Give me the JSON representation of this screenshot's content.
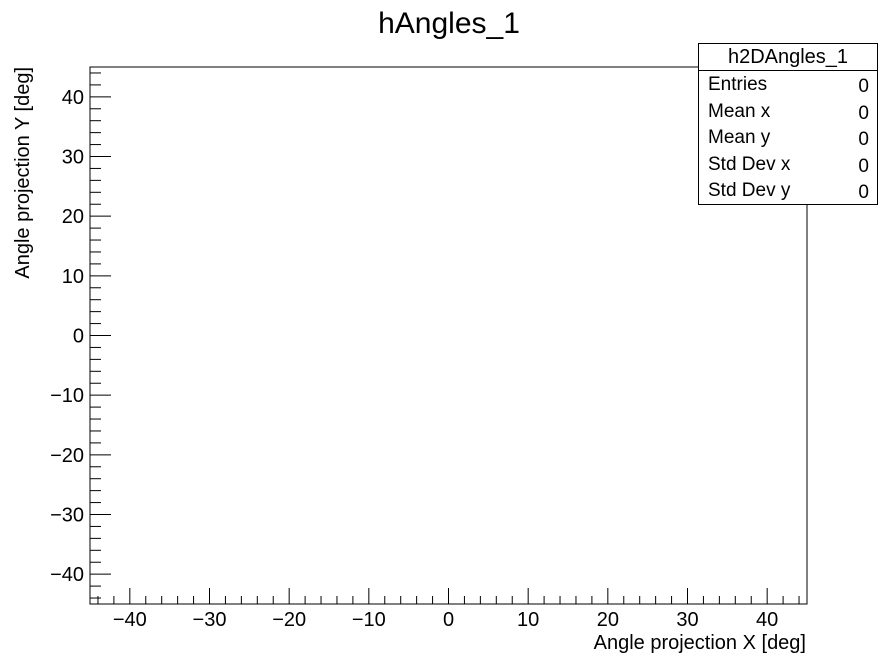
{
  "chart_data": {
    "type": "heatmap",
    "title": "hAngles_1",
    "xlabel": "Angle projection X [deg]",
    "ylabel": "Angle projection Y [deg]",
    "xlim": [
      -45,
      45
    ],
    "ylim": [
      -45,
      45
    ],
    "x_ticks": [
      -40,
      -30,
      -20,
      -10,
      0,
      10,
      20,
      30,
      40
    ],
    "y_ticks": [
      -40,
      -30,
      -20,
      -10,
      0,
      10,
      20,
      30,
      40
    ],
    "x_tick_labels": [
      "−40",
      "−30",
      "−20",
      "−10",
      "0",
      "10",
      "20",
      "30",
      "40"
    ],
    "y_tick_labels": [
      "−40",
      "−30",
      "−20",
      "−10",
      "0",
      "10",
      "20",
      "30",
      "40"
    ],
    "minor_tick_step": 2,
    "grid": false,
    "values": [],
    "legend": "none"
  },
  "stats": {
    "name": "h2DAngles_1",
    "rows": [
      {
        "label": "Entries",
        "value": "0"
      },
      {
        "label": "Mean x",
        "value": "0"
      },
      {
        "label": "Mean y",
        "value": "0"
      },
      {
        "label": "Std Dev x",
        "value": "0"
      },
      {
        "label": "Std Dev y",
        "value": "0"
      }
    ]
  }
}
